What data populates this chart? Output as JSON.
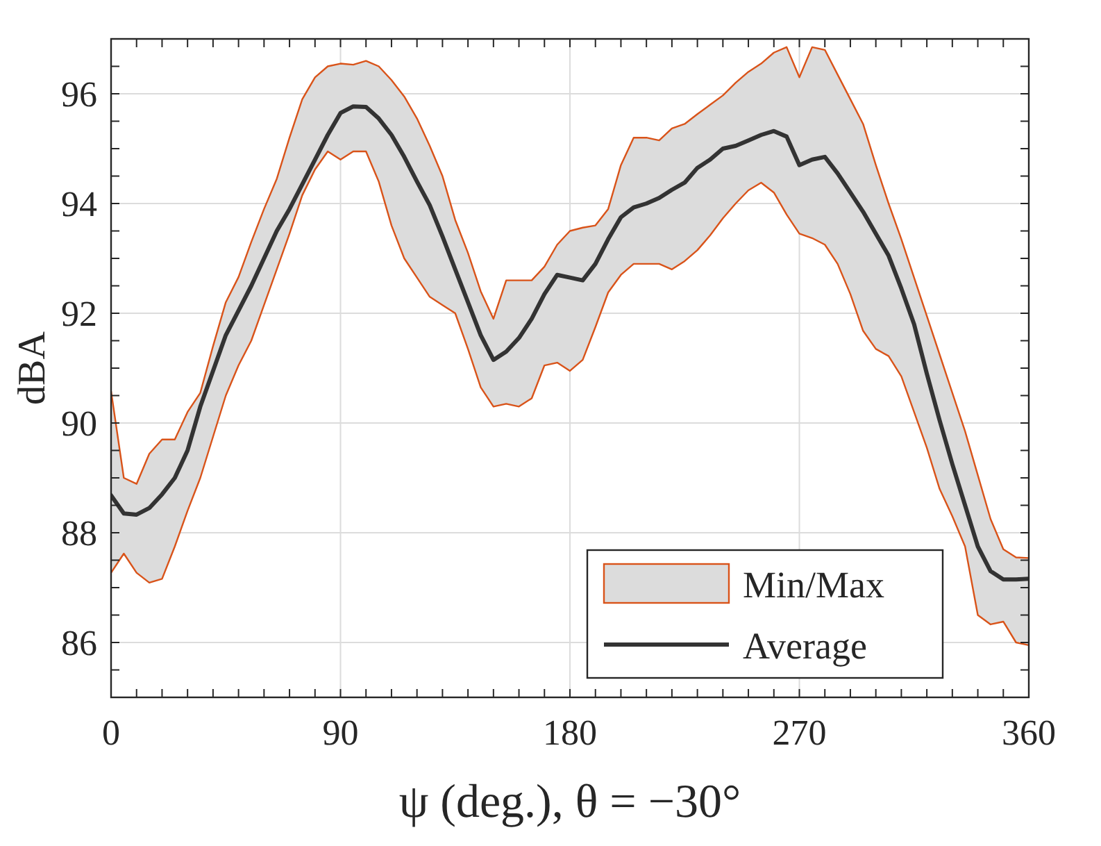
{
  "chart_data": {
    "type": "line",
    "xlabel": "ψ (deg.), θ = −30°",
    "ylabel": "dBA",
    "x": [
      0,
      5,
      10,
      15,
      20,
      25,
      30,
      35,
      40,
      45,
      50,
      55,
      60,
      65,
      70,
      75,
      80,
      85,
      90,
      95,
      100,
      105,
      110,
      115,
      120,
      125,
      130,
      135,
      140,
      145,
      150,
      155,
      160,
      165,
      170,
      175,
      180,
      185,
      190,
      195,
      200,
      205,
      210,
      215,
      220,
      225,
      230,
      235,
      240,
      245,
      250,
      255,
      260,
      265,
      270,
      275,
      280,
      285,
      290,
      295,
      300,
      305,
      310,
      315,
      320,
      325,
      330,
      335,
      340,
      345,
      350,
      355,
      360
    ],
    "series": [
      {
        "name": "Min/Max",
        "color": "#d95319",
        "values": [
          90.58,
          89.0,
          88.89,
          89.44,
          89.7,
          89.7,
          90.2,
          90.55,
          91.4,
          92.2,
          92.66,
          93.3,
          93.9,
          94.45,
          95.2,
          95.9,
          96.3,
          96.5,
          96.55,
          96.53,
          96.6,
          96.5,
          96.25,
          95.95,
          95.55,
          95.05,
          94.5,
          93.7,
          93.1,
          92.4,
          91.9,
          92.6,
          92.6,
          92.6,
          92.85,
          93.25,
          93.5,
          93.56,
          93.6,
          93.9,
          94.7,
          95.2,
          95.2,
          95.15,
          95.37,
          95.45,
          95.63,
          95.8,
          95.97,
          96.2,
          96.4,
          96.55,
          96.75,
          96.85,
          96.3,
          96.85,
          96.8,
          96.35,
          95.9,
          95.45,
          94.7,
          94.0,
          93.35,
          92.65,
          91.95,
          91.25,
          90.55,
          89.85,
          89.05,
          88.25,
          87.7,
          87.55,
          87.54
        ]
      },
      {
        "color": "#d95319",
        "values": [
          87.27,
          87.62,
          87.27,
          87.09,
          87.16,
          87.75,
          88.4,
          89.0,
          89.75,
          90.5,
          91.05,
          91.5,
          92.15,
          92.8,
          93.45,
          94.15,
          94.62,
          94.95,
          94.8,
          94.95,
          94.95,
          94.4,
          93.6,
          93.0,
          92.65,
          92.3,
          92.15,
          92.0,
          91.35,
          90.65,
          90.3,
          90.35,
          90.3,
          90.45,
          91.05,
          91.1,
          90.95,
          91.15,
          91.75,
          92.38,
          92.7,
          92.9,
          92.9,
          92.9,
          92.8,
          92.95,
          93.15,
          93.42,
          93.73,
          94.0,
          94.24,
          94.38,
          94.2,
          93.8,
          93.45,
          93.37,
          93.25,
          92.9,
          92.35,
          91.68,
          91.35,
          91.22,
          90.85,
          90.2,
          89.55,
          88.8,
          88.3,
          87.75,
          86.5,
          86.33,
          86.38,
          86.0,
          85.95
        ]
      },
      {
        "name": "Average",
        "color": "#333333",
        "values": [
          88.68,
          88.35,
          88.33,
          88.45,
          88.7,
          89.0,
          89.5,
          90.3,
          90.95,
          91.6,
          92.05,
          92.5,
          93.0,
          93.5,
          93.9,
          94.35,
          94.8,
          95.25,
          95.65,
          95.77,
          95.76,
          95.55,
          95.25,
          94.85,
          94.4,
          93.97,
          93.4,
          92.8,
          92.2,
          91.6,
          91.15,
          91.3,
          91.55,
          91.9,
          92.35,
          92.7,
          92.65,
          92.6,
          92.9,
          93.35,
          93.75,
          93.93,
          94.0,
          94.1,
          94.25,
          94.38,
          94.65,
          94.8,
          95.0,
          95.05,
          95.15,
          95.25,
          95.32,
          95.22,
          94.7,
          94.8,
          94.85,
          94.55,
          94.2,
          93.85,
          93.45,
          93.05,
          92.45,
          91.8,
          90.9,
          90.05,
          89.25,
          88.5,
          87.75,
          87.3,
          87.15,
          87.15,
          87.16
        ],
        "upper": [
          90.58,
          89.0,
          88.89,
          89.44,
          89.7,
          89.7,
          90.2,
          90.55,
          91.4,
          92.2,
          92.66,
          93.3,
          93.9,
          94.45,
          95.2,
          95.9,
          96.3,
          96.5,
          96.55,
          96.53,
          96.6,
          96.5,
          96.25,
          95.95,
          95.55,
          95.05,
          94.5,
          93.7,
          93.1,
          92.4,
          91.9,
          92.6,
          92.6,
          92.6,
          92.85,
          93.25,
          93.5,
          93.56,
          93.6,
          93.9,
          94.7,
          95.2,
          95.2,
          95.15,
          95.37,
          95.45,
          95.63,
          95.8,
          95.97,
          96.2,
          96.4,
          96.55,
          96.75,
          96.85,
          96.3,
          96.85,
          96.8,
          96.35,
          95.9,
          95.45,
          94.7,
          94.0,
          93.35,
          92.65,
          91.95,
          91.25,
          90.55,
          89.85,
          89.05,
          88.25,
          87.7,
          87.55,
          87.54
        ],
        "lower": [
          87.27,
          87.62,
          87.27,
          87.09,
          87.16,
          87.75,
          88.4,
          89.0,
          89.75,
          90.5,
          91.05,
          91.5,
          92.15,
          92.8,
          93.45,
          94.15,
          94.62,
          94.95,
          94.8,
          94.95,
          94.95,
          94.4,
          93.6,
          93.0,
          92.65,
          92.3,
          92.15,
          92.0,
          91.35,
          90.65,
          90.3,
          90.35,
          90.3,
          90.45,
          91.05,
          91.1,
          90.95,
          91.15,
          91.75,
          92.38,
          92.7,
          92.9,
          92.9,
          92.9,
          92.8,
          92.95,
          93.15,
          93.42,
          93.73,
          94.0,
          94.24,
          94.38,
          94.2,
          93.8,
          93.45,
          93.37,
          93.25,
          92.9,
          92.35,
          91.68,
          91.35,
          91.22,
          90.85,
          90.2,
          89.55,
          88.8,
          88.3,
          87.75,
          86.5,
          86.33,
          86.38,
          86.0,
          85.95
        ]
      }
    ],
    "xlim": [
      0,
      360
    ],
    "xticks": [
      0,
      90,
      180,
      270,
      360
    ],
    "ylim": [
      85,
      97
    ],
    "yticks": [
      86,
      88,
      90,
      92,
      94,
      96
    ],
    "grid": true,
    "legend": "bottom right"
  }
}
